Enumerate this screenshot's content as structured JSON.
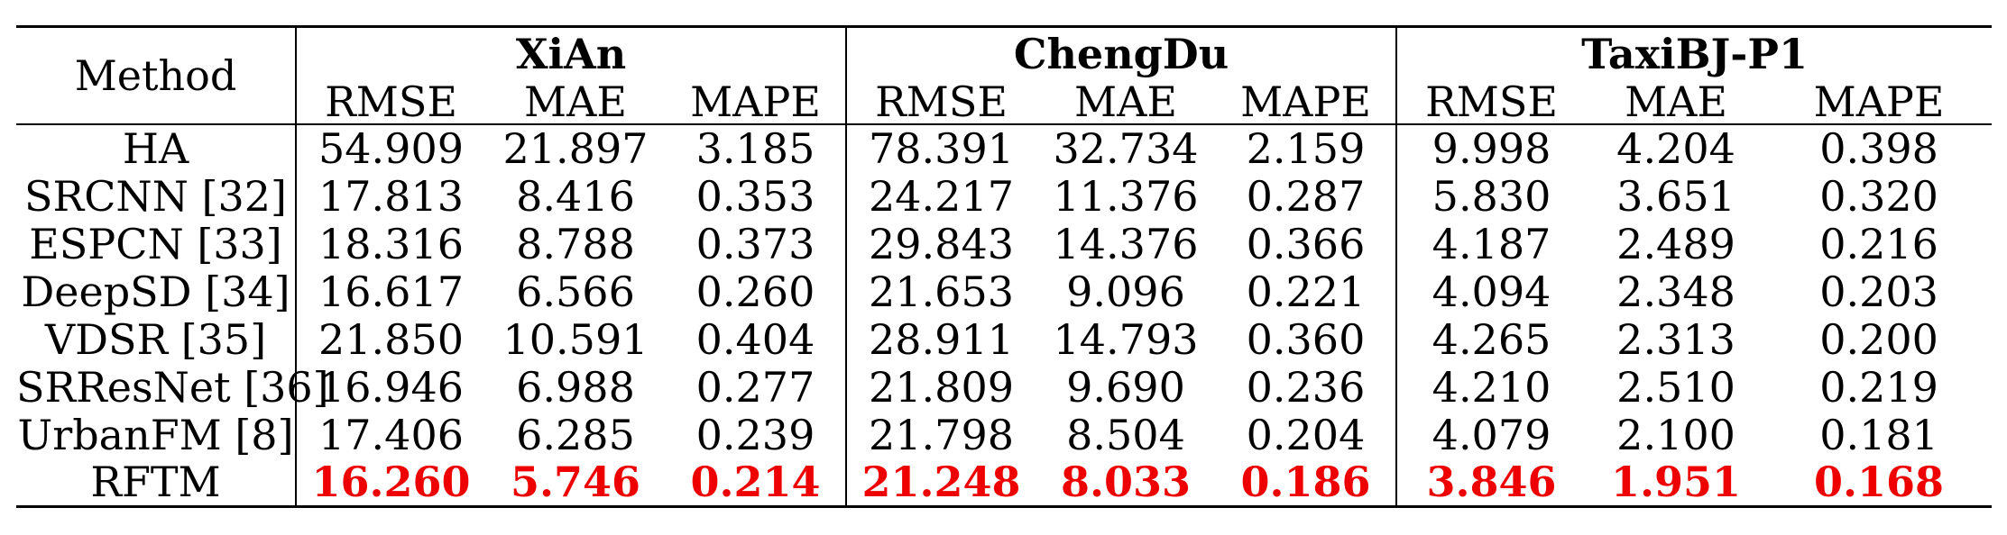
{
  "table": {
    "method_header": "Method",
    "groups": [
      "XiAn",
      "ChengDu",
      "TaxiBJ-P1"
    ],
    "metrics": [
      "RMSE",
      "MAE",
      "MAPE"
    ],
    "rows": [
      {
        "method": "HA",
        "values": [
          "54.909",
          "21.897",
          "3.185",
          "78.391",
          "32.734",
          "2.159",
          "9.998",
          "4.204",
          "0.398"
        ]
      },
      {
        "method": "SRCNN [32]",
        "values": [
          "17.813",
          "8.416",
          "0.353",
          "24.217",
          "11.376",
          "0.287",
          "5.830",
          "3.651",
          "0.320"
        ]
      },
      {
        "method": "ESPCN [33]",
        "values": [
          "18.316",
          "8.788",
          "0.373",
          "29.843",
          "14.376",
          "0.366",
          "4.187",
          "2.489",
          "0.216"
        ]
      },
      {
        "method": "DeepSD [34]",
        "values": [
          "16.617",
          "6.566",
          "0.260",
          "21.653",
          "9.096",
          "0.221",
          "4.094",
          "2.348",
          "0.203"
        ]
      },
      {
        "method": "VDSR [35]",
        "values": [
          "21.850",
          "10.591",
          "0.404",
          "28.911",
          "14.793",
          "0.360",
          "4.265",
          "2.313",
          "0.200"
        ]
      },
      {
        "method": "SRResNet [36]",
        "values": [
          "16.946",
          "6.988",
          "0.277",
          "21.809",
          "9.690",
          "0.236",
          "4.210",
          "2.510",
          "0.219"
        ]
      },
      {
        "method": "UrbanFM [8]",
        "values": [
          "17.406",
          "6.285",
          "0.239",
          "21.798",
          "8.504",
          "0.204",
          "4.079",
          "2.100",
          "0.181"
        ]
      },
      {
        "method": "RFTM",
        "values": [
          "16.260",
          "5.746",
          "0.214",
          "21.248",
          "8.033",
          "0.186",
          "3.846",
          "1.951",
          "0.168"
        ],
        "highlight": true
      }
    ],
    "highlight_color": "#ee0000"
  }
}
